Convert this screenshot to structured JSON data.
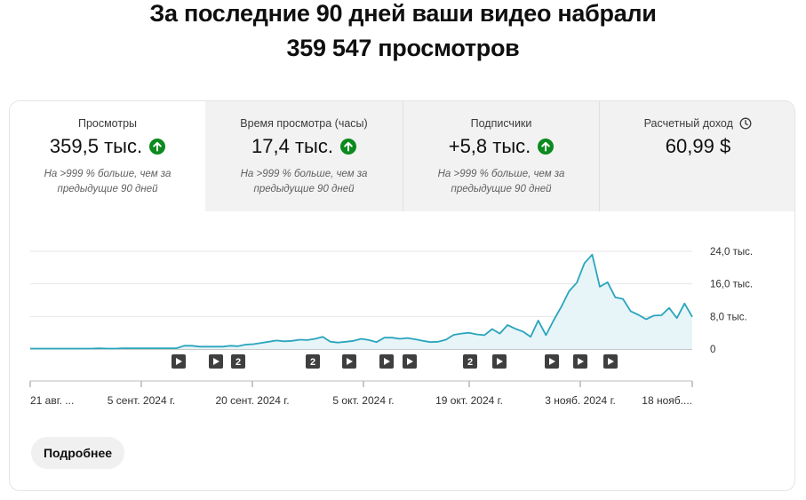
{
  "headline": {
    "line1": "За последние 90 дней ваши видео набрали",
    "line2": "359 547 просмотров"
  },
  "metrics": [
    {
      "title": "Просмотры",
      "value": "359,5 тыс.",
      "trend": "up",
      "note1": "На >999 % больше, чем за",
      "note2": "предыдущие 90 дней",
      "active": true
    },
    {
      "title": "Время просмотра (часы)",
      "value": "17,4 тыс.",
      "trend": "up",
      "note1": "На >999 % больше, чем за",
      "note2": "предыдущие 90 дней",
      "active": false
    },
    {
      "title": "Подписчики",
      "value": "+5,8 тыс.",
      "trend": "up",
      "note1": "На >999 % больше, чем за",
      "note2": "предыдущие 90 дней",
      "active": false
    },
    {
      "title": "Расчетный доход",
      "value": "60,99 $",
      "icon": "clock-icon",
      "active": false
    }
  ],
  "colors": {
    "line": "#2aa5bd",
    "fill": "#e7f4f8",
    "up": "#0b8a1e",
    "marker": "#3f3f3f"
  },
  "chart_data": {
    "type": "area",
    "y_ticks": [
      "24,0 тыс.",
      "16,0 тыс.",
      "8,0 тыс.",
      "0"
    ],
    "ylim": [
      0,
      24000
    ],
    "x_tick_labels": [
      "21 авг. ...",
      "5 сент. 2024 г.",
      "20 сент. 2024 г.",
      "5 окт. 2024 г.",
      "19 окт. 2024 г.",
      "3 нояб. 2024 г.",
      "18 нояб...."
    ],
    "series": [
      {
        "values": [
          100,
          100,
          100,
          100,
          100,
          100,
          100,
          100,
          100,
          200,
          100,
          100,
          200,
          200,
          200,
          200,
          200,
          200,
          200,
          200,
          800,
          800,
          600,
          600,
          600,
          600,
          800,
          700,
          1100,
          1200,
          1500,
          1800,
          2100,
          1900,
          2000,
          2300,
          2200,
          2500,
          3000,
          1800,
          1600,
          1800,
          2000,
          2500,
          2200,
          1700,
          2800,
          2800,
          2500,
          2700,
          2400,
          2000,
          1700,
          1800,
          2300,
          3500,
          3800,
          4000,
          3600,
          3400,
          4900,
          3800,
          5900,
          5000,
          4300,
          3000,
          7000,
          3400,
          7100,
          10400,
          14200,
          16300,
          21100,
          23200,
          15300,
          16400,
          12700,
          12300,
          9300,
          8400,
          7300,
          8200,
          8300,
          10100,
          7600,
          11200,
          7900
        ]
      }
    ],
    "video_markers": [
      "▶",
      "▶",
      "2",
      "2",
      "▶",
      "▶",
      "▶",
      "2",
      "▶",
      "▶",
      "▶",
      "▶"
    ]
  },
  "button": {
    "label": "Подробнее"
  }
}
